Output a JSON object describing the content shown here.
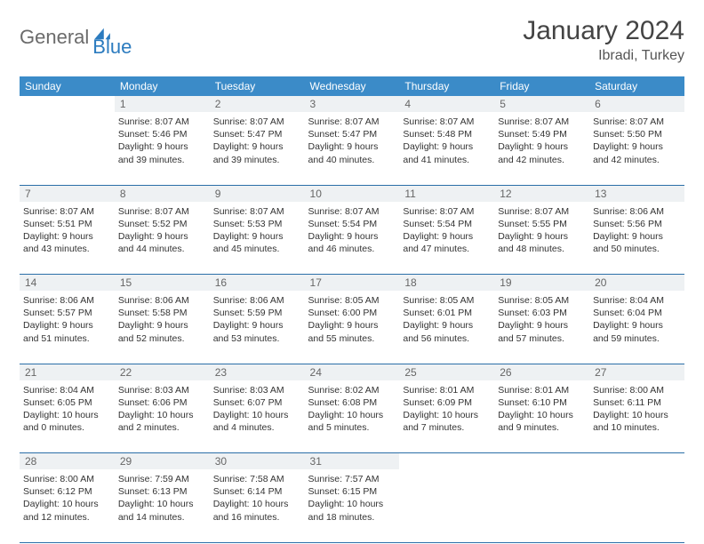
{
  "logo": {
    "word1": "General",
    "word2": "Blue"
  },
  "title": "January 2024",
  "location": "Ibradi, Turkey",
  "colors": {
    "header_bg": "#3b8bc8",
    "header_text": "#ffffff",
    "daynum_bg": "#eef1f3",
    "daynum_text": "#666666",
    "border": "#2b6fa8",
    "brand_blue": "#2b7bbf",
    "brand_gray": "#6b6b6b"
  },
  "weekdays": [
    "Sunday",
    "Monday",
    "Tuesday",
    "Wednesday",
    "Thursday",
    "Friday",
    "Saturday"
  ],
  "grid": [
    [
      null,
      {
        "n": "1",
        "sr": "8:07 AM",
        "ss": "5:46 PM",
        "dl": "9 hours and 39 minutes."
      },
      {
        "n": "2",
        "sr": "8:07 AM",
        "ss": "5:47 PM",
        "dl": "9 hours and 39 minutes."
      },
      {
        "n": "3",
        "sr": "8:07 AM",
        "ss": "5:47 PM",
        "dl": "9 hours and 40 minutes."
      },
      {
        "n": "4",
        "sr": "8:07 AM",
        "ss": "5:48 PM",
        "dl": "9 hours and 41 minutes."
      },
      {
        "n": "5",
        "sr": "8:07 AM",
        "ss": "5:49 PM",
        "dl": "9 hours and 42 minutes."
      },
      {
        "n": "6",
        "sr": "8:07 AM",
        "ss": "5:50 PM",
        "dl": "9 hours and 42 minutes."
      }
    ],
    [
      {
        "n": "7",
        "sr": "8:07 AM",
        "ss": "5:51 PM",
        "dl": "9 hours and 43 minutes."
      },
      {
        "n": "8",
        "sr": "8:07 AM",
        "ss": "5:52 PM",
        "dl": "9 hours and 44 minutes."
      },
      {
        "n": "9",
        "sr": "8:07 AM",
        "ss": "5:53 PM",
        "dl": "9 hours and 45 minutes."
      },
      {
        "n": "10",
        "sr": "8:07 AM",
        "ss": "5:54 PM",
        "dl": "9 hours and 46 minutes."
      },
      {
        "n": "11",
        "sr": "8:07 AM",
        "ss": "5:54 PM",
        "dl": "9 hours and 47 minutes."
      },
      {
        "n": "12",
        "sr": "8:07 AM",
        "ss": "5:55 PM",
        "dl": "9 hours and 48 minutes."
      },
      {
        "n": "13",
        "sr": "8:06 AM",
        "ss": "5:56 PM",
        "dl": "9 hours and 50 minutes."
      }
    ],
    [
      {
        "n": "14",
        "sr": "8:06 AM",
        "ss": "5:57 PM",
        "dl": "9 hours and 51 minutes."
      },
      {
        "n": "15",
        "sr": "8:06 AM",
        "ss": "5:58 PM",
        "dl": "9 hours and 52 minutes."
      },
      {
        "n": "16",
        "sr": "8:06 AM",
        "ss": "5:59 PM",
        "dl": "9 hours and 53 minutes."
      },
      {
        "n": "17",
        "sr": "8:05 AM",
        "ss": "6:00 PM",
        "dl": "9 hours and 55 minutes."
      },
      {
        "n": "18",
        "sr": "8:05 AM",
        "ss": "6:01 PM",
        "dl": "9 hours and 56 minutes."
      },
      {
        "n": "19",
        "sr": "8:05 AM",
        "ss": "6:03 PM",
        "dl": "9 hours and 57 minutes."
      },
      {
        "n": "20",
        "sr": "8:04 AM",
        "ss": "6:04 PM",
        "dl": "9 hours and 59 minutes."
      }
    ],
    [
      {
        "n": "21",
        "sr": "8:04 AM",
        "ss": "6:05 PM",
        "dl": "10 hours and 0 minutes."
      },
      {
        "n": "22",
        "sr": "8:03 AM",
        "ss": "6:06 PM",
        "dl": "10 hours and 2 minutes."
      },
      {
        "n": "23",
        "sr": "8:03 AM",
        "ss": "6:07 PM",
        "dl": "10 hours and 4 minutes."
      },
      {
        "n": "24",
        "sr": "8:02 AM",
        "ss": "6:08 PM",
        "dl": "10 hours and 5 minutes."
      },
      {
        "n": "25",
        "sr": "8:01 AM",
        "ss": "6:09 PM",
        "dl": "10 hours and 7 minutes."
      },
      {
        "n": "26",
        "sr": "8:01 AM",
        "ss": "6:10 PM",
        "dl": "10 hours and 9 minutes."
      },
      {
        "n": "27",
        "sr": "8:00 AM",
        "ss": "6:11 PM",
        "dl": "10 hours and 10 minutes."
      }
    ],
    [
      {
        "n": "28",
        "sr": "8:00 AM",
        "ss": "6:12 PM",
        "dl": "10 hours and 12 minutes."
      },
      {
        "n": "29",
        "sr": "7:59 AM",
        "ss": "6:13 PM",
        "dl": "10 hours and 14 minutes."
      },
      {
        "n": "30",
        "sr": "7:58 AM",
        "ss": "6:14 PM",
        "dl": "10 hours and 16 minutes."
      },
      {
        "n": "31",
        "sr": "7:57 AM",
        "ss": "6:15 PM",
        "dl": "10 hours and 18 minutes."
      },
      null,
      null,
      null
    ]
  ],
  "labels": {
    "sunrise": "Sunrise:",
    "sunset": "Sunset:",
    "daylight": "Daylight:"
  }
}
